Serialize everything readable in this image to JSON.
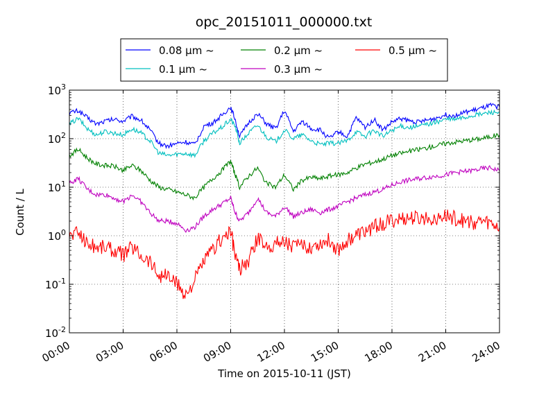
{
  "chart_data": {
    "type": "line",
    "title": "opc_20151011_000000.txt",
    "xlabel": "Time on 2015-10-11 (JST)",
    "ylabel": "Count / L",
    "y_scale": "log",
    "ylim": [
      0.01,
      1000
    ],
    "y_ticks": [
      {
        "value": 0.01,
        "base": "10",
        "exp": "-2"
      },
      {
        "value": 0.1,
        "base": "10",
        "exp": "-1"
      },
      {
        "value": 1,
        "base": "10",
        "exp": "0"
      },
      {
        "value": 10,
        "base": "10",
        "exp": "1"
      },
      {
        "value": 100,
        "base": "10",
        "exp": "2"
      },
      {
        "value": 1000,
        "base": "10",
        "exp": "3"
      }
    ],
    "x_ticks": [
      "00:00",
      "03:00",
      "06:00",
      "09:00",
      "12:00",
      "15:00",
      "18:00",
      "21:00",
      "24:00"
    ],
    "xlim": [
      "00:00",
      "24:00"
    ],
    "grid": true,
    "legend_position": "above plot, centered",
    "series": [
      {
        "name": "0.08 μm ~",
        "color": "#0000ff",
        "x": [
          "00:00",
          "00:30",
          "01:00",
          "01:30",
          "02:00",
          "02:30",
          "03:00",
          "03:30",
          "04:00",
          "04:30",
          "05:00",
          "05:30",
          "06:00",
          "06:30",
          "07:00",
          "07:30",
          "08:00",
          "08:30",
          "09:00",
          "09:15",
          "09:30",
          "10:00",
          "10:30",
          "11:00",
          "11:30",
          "12:00",
          "12:30",
          "13:00",
          "13:30",
          "14:00",
          "14:30",
          "15:00",
          "15:30",
          "16:00",
          "16:30",
          "17:00",
          "17:30",
          "18:00",
          "18:30",
          "19:00",
          "19:30",
          "20:00",
          "20:30",
          "21:00",
          "21:30",
          "22:00",
          "22:30",
          "23:00",
          "23:30",
          "24:00"
        ],
        "y": [
          340,
          380,
          270,
          200,
          230,
          250,
          230,
          290,
          240,
          150,
          80,
          70,
          80,
          85,
          75,
          180,
          210,
          300,
          450,
          250,
          110,
          210,
          330,
          200,
          160,
          380,
          140,
          230,
          160,
          150,
          100,
          140,
          110,
          270,
          170,
          250,
          150,
          220,
          260,
          230,
          220,
          240,
          270,
          310,
          300,
          340,
          380,
          420,
          480,
          450
        ]
      },
      {
        "name": "0.1 μm ~",
        "color": "#00bfbf",
        "x": [
          "00:00",
          "00:30",
          "01:00",
          "01:30",
          "02:00",
          "02:30",
          "03:00",
          "03:30",
          "04:00",
          "04:30",
          "05:00",
          "05:30",
          "06:00",
          "06:30",
          "07:00",
          "07:30",
          "08:00",
          "08:30",
          "09:00",
          "09:15",
          "09:30",
          "10:00",
          "10:30",
          "11:00",
          "11:30",
          "12:00",
          "12:30",
          "13:00",
          "13:30",
          "14:00",
          "14:30",
          "15:00",
          "15:30",
          "16:00",
          "16:30",
          "17:00",
          "17:30",
          "18:00",
          "18:30",
          "19:00",
          "19:30",
          "20:00",
          "20:30",
          "21:00",
          "21:30",
          "22:00",
          "22:30",
          "23:00",
          "23:30",
          "24:00"
        ],
        "y": [
          200,
          260,
          160,
          120,
          140,
          130,
          120,
          160,
          130,
          90,
          50,
          45,
          48,
          50,
          45,
          90,
          130,
          170,
          250,
          180,
          80,
          130,
          190,
          110,
          85,
          150,
          100,
          120,
          90,
          75,
          80,
          80,
          90,
          140,
          110,
          150,
          110,
          150,
          180,
          170,
          180,
          200,
          220,
          250,
          250,
          270,
          300,
          320,
          350,
          350
        ]
      },
      {
        "name": "0.2 μm ~",
        "color": "#008000",
        "x": [
          "00:00",
          "00:30",
          "01:00",
          "01:30",
          "02:00",
          "02:30",
          "03:00",
          "03:30",
          "04:00",
          "04:30",
          "05:00",
          "05:30",
          "06:00",
          "06:30",
          "07:00",
          "07:30",
          "08:00",
          "08:30",
          "09:00",
          "09:15",
          "09:30",
          "10:00",
          "10:30",
          "11:00",
          "11:30",
          "12:00",
          "12:30",
          "13:00",
          "13:30",
          "14:00",
          "14:30",
          "15:00",
          "15:30",
          "16:00",
          "16:30",
          "17:00",
          "17:30",
          "18:00",
          "18:30",
          "19:00",
          "19:30",
          "20:00",
          "20:30",
          "21:00",
          "21:30",
          "22:00",
          "22:30",
          "23:00",
          "23:30",
          "24:00"
        ],
        "y": [
          45,
          60,
          40,
          30,
          28,
          27,
          22,
          28,
          22,
          14,
          10,
          9,
          8,
          7,
          6,
          10,
          15,
          22,
          35,
          18,
          10,
          17,
          25,
          12,
          10,
          18,
          9,
          14,
          16,
          15,
          17,
          18,
          20,
          25,
          30,
          33,
          38,
          45,
          50,
          55,
          60,
          65,
          72,
          80,
          85,
          90,
          95,
          100,
          110,
          120
        ]
      },
      {
        "name": "0.3 μm ~",
        "color": "#bf00bf",
        "x": [
          "00:00",
          "00:30",
          "01:00",
          "01:30",
          "02:00",
          "02:30",
          "03:00",
          "03:30",
          "04:00",
          "04:30",
          "05:00",
          "05:30",
          "06:00",
          "06:30",
          "07:00",
          "07:30",
          "08:00",
          "08:30",
          "09:00",
          "09:15",
          "09:30",
          "10:00",
          "10:30",
          "11:00",
          "11:30",
          "12:00",
          "12:30",
          "13:00",
          "13:30",
          "14:00",
          "14:30",
          "15:00",
          "15:30",
          "16:00",
          "16:30",
          "17:00",
          "17:30",
          "18:00",
          "18:30",
          "19:00",
          "19:30",
          "20:00",
          "20:30",
          "21:00",
          "21:30",
          "22:00",
          "22:30",
          "23:00",
          "23:30",
          "24:00"
        ],
        "y": [
          12,
          15,
          9,
          7,
          7,
          6,
          5,
          7,
          5,
          3,
          2,
          2,
          1.8,
          1.3,
          1.5,
          2.5,
          3.5,
          4.5,
          6,
          3,
          2,
          3,
          6,
          3,
          2.5,
          4,
          2.5,
          3,
          3.5,
          3,
          3.5,
          4,
          5,
          6,
          7,
          8,
          9,
          11,
          13,
          14,
          15,
          16,
          17,
          18,
          20,
          21,
          22,
          24,
          25,
          22
        ]
      },
      {
        "name": "0.5 μm ~",
        "color": "#ff0000",
        "x": [
          "00:00",
          "00:30",
          "01:00",
          "01:30",
          "02:00",
          "02:30",
          "03:00",
          "03:30",
          "04:00",
          "04:30",
          "05:00",
          "05:30",
          "06:00",
          "06:30",
          "07:00",
          "07:30",
          "08:00",
          "08:30",
          "09:00",
          "09:15",
          "09:30",
          "10:00",
          "10:30",
          "11:00",
          "11:30",
          "12:00",
          "12:30",
          "13:00",
          "13:30",
          "14:00",
          "14:30",
          "15:00",
          "15:30",
          "16:00",
          "16:30",
          "17:00",
          "17:30",
          "18:00",
          "18:30",
          "19:00",
          "19:30",
          "20:00",
          "20:30",
          "21:00",
          "21:30",
          "22:00",
          "22:30",
          "23:00",
          "23:30",
          "24:00"
        ],
        "y": [
          1.0,
          1.2,
          0.7,
          0.6,
          0.6,
          0.5,
          0.4,
          0.6,
          0.4,
          0.3,
          0.15,
          0.15,
          0.1,
          0.06,
          0.12,
          0.3,
          0.5,
          0.9,
          1.2,
          0.4,
          0.2,
          0.3,
          0.9,
          0.6,
          0.7,
          0.8,
          0.6,
          0.6,
          0.6,
          0.7,
          0.8,
          0.5,
          0.8,
          1.0,
          1.2,
          1.5,
          1.8,
          2.0,
          2.2,
          2.3,
          2.2,
          2.3,
          2.4,
          2.5,
          2.3,
          2.0,
          1.9,
          2.0,
          1.8,
          1.5
        ]
      }
    ]
  }
}
